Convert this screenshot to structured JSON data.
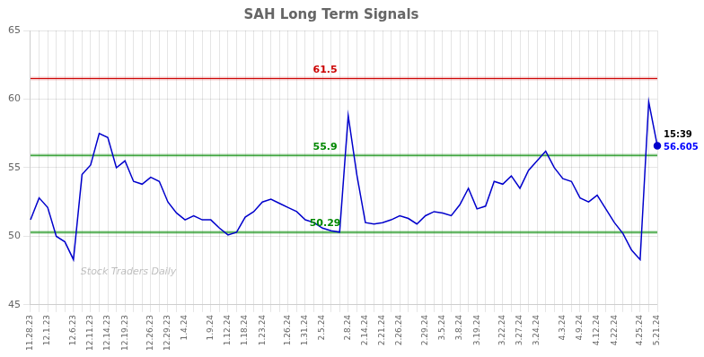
{
  "chart_data": {
    "type": "line",
    "title": "SAH Long Term Signals",
    "categories": [
      "11.28.23",
      null,
      "12.1.23",
      null,
      null,
      "12.6.23",
      null,
      "12.11.23",
      null,
      "12.14.23",
      null,
      "12.19.23",
      null,
      null,
      "12.26.23",
      null,
      "12.29.23",
      null,
      "1.4.24",
      null,
      null,
      "1.9.24",
      null,
      "1.12.24",
      null,
      "1.18.24",
      null,
      "1.23.24",
      null,
      null,
      "1.26.24",
      null,
      "1.31.24",
      null,
      "2.5.24",
      null,
      null,
      "2.8.24",
      null,
      "2.14.24",
      null,
      "2.21.24",
      null,
      "2.26.24",
      null,
      null,
      "2.29.24",
      null,
      "3.5.24",
      null,
      "3.8.24",
      null,
      "3.19.24",
      null,
      null,
      "3.22.24",
      null,
      "3.27.24",
      null,
      "3.24.24",
      null,
      null,
      "4.3.24",
      null,
      "4.9.24",
      null,
      "4.12.24",
      null,
      "4.22.24",
      null,
      null,
      "4.25.24",
      null,
      "5.21.24"
    ],
    "series": [
      {
        "name": "SAH",
        "color": "#0000cc",
        "values": [
          51.2,
          52.8,
          52.1,
          50.0,
          49.6,
          48.3,
          54.5,
          55.2,
          57.5,
          57.2,
          55.0,
          55.5,
          54.0,
          53.8,
          54.3,
          54.0,
          52.5,
          51.7,
          51.2,
          51.5,
          51.2,
          51.2,
          50.6,
          50.1,
          50.3,
          51.4,
          51.8,
          52.5,
          52.7,
          52.4,
          52.1,
          51.8,
          51.2,
          51.0,
          50.6,
          50.4,
          50.3,
          58.8,
          54.5,
          51.0,
          50.9,
          51.0,
          51.2,
          51.5,
          51.3,
          50.9,
          51.5,
          51.8,
          51.7,
          51.5,
          52.3,
          53.5,
          52.0,
          52.2,
          54.0,
          53.8,
          54.4,
          53.5,
          54.8,
          55.5,
          56.2,
          55.0,
          54.2,
          54.0,
          52.8,
          52.5,
          53.0,
          52.0,
          51.0,
          50.2,
          49.0,
          48.3,
          59.8,
          56.605
        ]
      }
    ],
    "hlines": [
      {
        "value": 61.5,
        "color": "#cc0000"
      },
      {
        "value": 55.9,
        "color": "#008800"
      },
      {
        "value": 50.29,
        "color": "#008800"
      }
    ],
    "annotations": [
      {
        "text": "15:39",
        "color": "#000000"
      },
      {
        "text": "56.605",
        "color": "#0000ff"
      }
    ],
    "watermark": "Stock Traders Daily",
    "ylim": [
      45,
      65
    ],
    "yticks": [
      45,
      50,
      55,
      60,
      65
    ],
    "grid": true
  }
}
